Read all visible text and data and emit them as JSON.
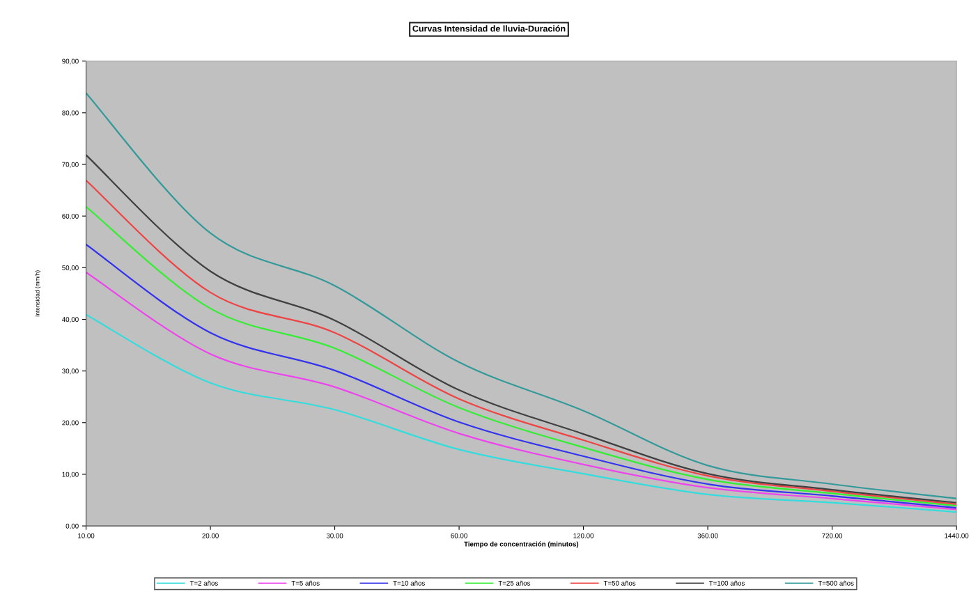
{
  "chart_data": {
    "type": "line",
    "title": "Curvas Intensidad de lluvia-Duración",
    "xlabel": "Tiempo de concentración (minutos)",
    "ylabel": "Intensidad (mm/h)",
    "categories": [
      "10.00",
      "20.00",
      "30.00",
      "60.00",
      "120.00",
      "360.00",
      "720.00",
      "1440.00"
    ],
    "ylim": [
      0,
      90
    ],
    "yticks": [
      {
        "value": 0,
        "label": "0,00"
      },
      {
        "value": 10,
        "label": "10,00"
      },
      {
        "value": 20,
        "label": "20,00"
      },
      {
        "value": 30,
        "label": "30,00"
      },
      {
        "value": 40,
        "label": "40,00"
      },
      {
        "value": 50,
        "label": "50,00"
      },
      {
        "value": 60,
        "label": "60,00"
      },
      {
        "value": 70,
        "label": "70,00"
      },
      {
        "value": 80,
        "label": "80,00"
      },
      {
        "value": 90,
        "label": "90,00"
      }
    ],
    "grid": false,
    "legend": "bottom",
    "series": [
      {
        "name": "T=2 años",
        "color": "#33dddd",
        "values": [
          40.9,
          27.7,
          22.5,
          14.8,
          10.1,
          6.1,
          4.5,
          2.7
        ]
      },
      {
        "name": "T=5 años",
        "color": "#ee44ee",
        "values": [
          49.1,
          33.3,
          26.9,
          17.9,
          11.9,
          7.4,
          5.3,
          3.2
        ]
      },
      {
        "name": "T=10 años",
        "color": "#3333ee",
        "values": [
          54.5,
          37.4,
          30.1,
          20.1,
          13.5,
          8.1,
          5.8,
          3.5
        ]
      },
      {
        "name": "T=25 años",
        "color": "#33ee33",
        "values": [
          61.8,
          42.1,
          34.4,
          22.9,
          15.2,
          9.0,
          6.3,
          3.9
        ]
      },
      {
        "name": "T=50 años",
        "color": "#ee4444",
        "values": [
          66.9,
          45.2,
          37.4,
          24.6,
          16.6,
          9.7,
          6.7,
          4.2
        ]
      },
      {
        "name": "T=100 años",
        "color": "#404040",
        "values": [
          71.8,
          49.3,
          39.8,
          26.3,
          17.8,
          10.1,
          7.0,
          4.5
        ]
      },
      {
        "name": "T=500 años",
        "color": "#339999",
        "values": [
          83.8,
          56.7,
          46.5,
          31.7,
          22.3,
          11.7,
          8.1,
          5.3
        ]
      }
    ]
  }
}
